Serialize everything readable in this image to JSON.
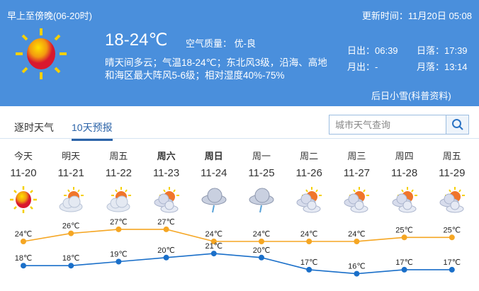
{
  "header": {
    "period": "早上至傍晚(06-20时)",
    "update": "更新时间：11月20日 05:08",
    "temp": "18-24℃",
    "aqi": "空气质量：  优-良",
    "desc1": "晴天间多云；气温18-24℃；东北风3级，沿海、高地",
    "desc2": "和海区最大阵风5-6级；相对湿度40%-75%",
    "sunrise": "日出：06:39",
    "sunset": "日落：17:39",
    "moonrise": "月出：-",
    "moonset": "月落：13:14",
    "link": "后日小雪(科普资料)",
    "icon": "sun-icon"
  },
  "tabs": [
    {
      "label": "逐时天气"
    },
    {
      "label": "10天预报",
      "active": true
    }
  ],
  "search": {
    "placeholder": "城市天气查询",
    "icon": "search-icon"
  },
  "colors": {
    "header": "#4a8fdc",
    "high": "#f5a623",
    "low": "#1a6fc9"
  },
  "days": [
    {
      "day": "今天",
      "date": "11-20",
      "icon": "sun",
      "high": 24,
      "low": 18,
      "hl": "24℃",
      "ll": "18℃"
    },
    {
      "day": "明天",
      "date": "11-21",
      "icon": "partly-cloudy",
      "high": 26,
      "low": 18,
      "hl": "26℃",
      "ll": "18℃"
    },
    {
      "day": "周五",
      "date": "11-22",
      "icon": "partly-cloudy",
      "high": 27,
      "low": 19,
      "hl": "27℃",
      "ll": "19℃"
    },
    {
      "day": "周六",
      "date": "11-23",
      "icon": "cloudy-sun",
      "high": 27,
      "low": 20,
      "hl": "27℃",
      "ll": "20℃",
      "bold": true
    },
    {
      "day": "周日",
      "date": "11-24",
      "icon": "light-rain",
      "high": 24,
      "low": 21,
      "hl": "24℃",
      "ll": "21℃",
      "bold": true
    },
    {
      "day": "周一",
      "date": "11-25",
      "icon": "light-rain",
      "high": 24,
      "low": 20,
      "hl": "24℃",
      "ll": "20℃"
    },
    {
      "day": "周二",
      "date": "11-26",
      "icon": "cloudy-sun",
      "high": 24,
      "low": 17,
      "hl": "24℃",
      "ll": "17℃"
    },
    {
      "day": "周三",
      "date": "11-27",
      "icon": "cloudy-sun",
      "high": 24,
      "low": 16,
      "hl": "24℃",
      "ll": "16℃"
    },
    {
      "day": "周四",
      "date": "11-28",
      "icon": "cloudy-sun",
      "high": 25,
      "low": 17,
      "hl": "25℃",
      "ll": "17℃"
    },
    {
      "day": "周五",
      "date": "11-29",
      "icon": "cloudy-sun",
      "high": 25,
      "low": 17,
      "hl": "25℃",
      "ll": "17℃"
    }
  ]
}
